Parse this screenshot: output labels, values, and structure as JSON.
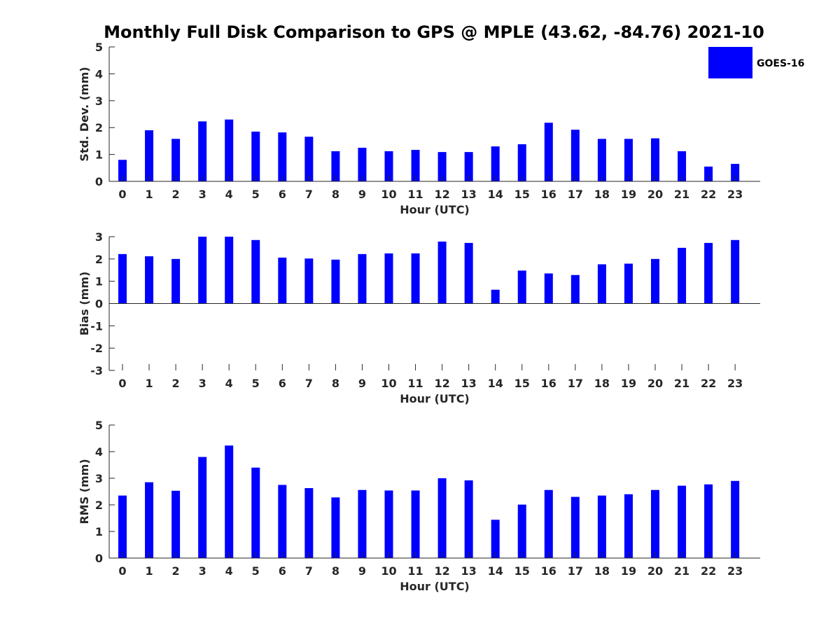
{
  "title": "Monthly Full Disk Comparison to GPS @ MPLE (43.62, -84.76) 2021-10",
  "legend": {
    "label": "GOES-16",
    "position": "top-right"
  },
  "colors": {
    "bar": "#0000ff",
    "axis": "#262626",
    "title": "#000000"
  },
  "chart_data": [
    {
      "type": "bar",
      "categories": [
        "0",
        "1",
        "2",
        "3",
        "4",
        "5",
        "6",
        "7",
        "8",
        "9",
        "10",
        "11",
        "12",
        "13",
        "14",
        "15",
        "16",
        "17",
        "18",
        "19",
        "20",
        "21",
        "22",
        "23"
      ],
      "series": [
        {
          "name": "GOES-16",
          "values": [
            0.8,
            1.9,
            1.58,
            2.23,
            2.3,
            1.85,
            1.82,
            1.66,
            1.12,
            1.25,
            1.12,
            1.17,
            1.09,
            1.09,
            1.3,
            1.38,
            2.18,
            1.92,
            1.58,
            1.58,
            1.6,
            1.12,
            0.55,
            0.65
          ]
        }
      ],
      "xlabel": "Hour (UTC)",
      "ylabel": "Std. Dev. (mm)",
      "ylim": [
        0,
        5
      ],
      "yticks": [
        "0",
        "1",
        "2",
        "3",
        "4",
        "5"
      ],
      "grid": false
    },
    {
      "type": "bar",
      "categories": [
        "0",
        "1",
        "2",
        "3",
        "4",
        "5",
        "6",
        "7",
        "8",
        "9",
        "10",
        "11",
        "12",
        "13",
        "14",
        "15",
        "16",
        "17",
        "18",
        "19",
        "20",
        "21",
        "22",
        "23"
      ],
      "series": [
        {
          "name": "GOES-16",
          "values": [
            2.22,
            2.12,
            2.0,
            3.0,
            3.0,
            2.85,
            2.06,
            2.02,
            1.97,
            2.22,
            2.25,
            2.25,
            2.78,
            2.72,
            0.62,
            1.48,
            1.35,
            1.28,
            1.76,
            1.79,
            2.0,
            2.5,
            2.72,
            2.85
          ]
        }
      ],
      "xlabel": "Hour (UTC)",
      "ylabel": "Bias (mm)",
      "ylim": [
        -3,
        3
      ],
      "yticks": [
        "-3",
        "-2",
        "-1",
        "0",
        "1",
        "2",
        "3"
      ],
      "grid": false
    },
    {
      "type": "bar",
      "categories": [
        "0",
        "1",
        "2",
        "3",
        "4",
        "5",
        "6",
        "7",
        "8",
        "9",
        "10",
        "11",
        "12",
        "13",
        "14",
        "15",
        "16",
        "17",
        "18",
        "19",
        "20",
        "21",
        "22",
        "23"
      ],
      "series": [
        {
          "name": "GOES-16",
          "values": [
            2.35,
            2.85,
            2.53,
            3.8,
            4.23,
            3.4,
            2.75,
            2.63,
            2.28,
            2.56,
            2.54,
            2.54,
            3.0,
            2.92,
            1.44,
            2.01,
            2.56,
            2.3,
            2.35,
            2.4,
            2.56,
            2.72,
            2.77,
            2.9
          ]
        }
      ],
      "xlabel": "Hour (UTC)",
      "ylabel": "RMS (mm)",
      "ylim": [
        0,
        5
      ],
      "yticks": [
        "0",
        "1",
        "2",
        "3",
        "4",
        "5"
      ],
      "grid": false
    }
  ]
}
